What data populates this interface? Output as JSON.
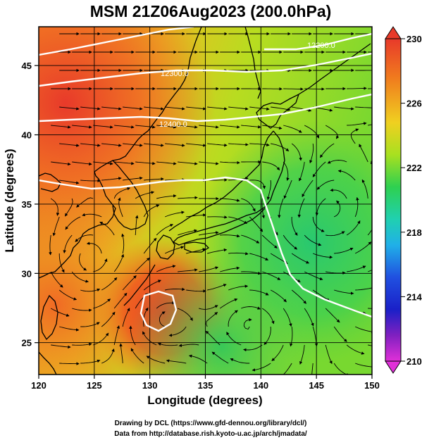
{
  "title": "MSM 21Z06Aug2023 (200.0hPa)",
  "xlabel": "Longitude (degrees)",
  "ylabel": "Latitude  (degrees)",
  "x_ticks": [
    "120",
    "125",
    "130",
    "135",
    "140",
    "145",
    "150"
  ],
  "y_ticks": [
    "25",
    "30",
    "35",
    "40",
    "45"
  ],
  "colorbar": {
    "ticks": [
      "230",
      "226",
      "222",
      "218",
      "214",
      "210"
    ]
  },
  "contour_labels": [
    "12200.0",
    "12300.0",
    "12400.0"
  ],
  "credits": [
    "Drawing by DCL (https://www.gfd-dennou.org/library/dcl/)",
    "Data from http://database.rish.kyoto-u.ac.jp/arch/jmadata/"
  ]
}
